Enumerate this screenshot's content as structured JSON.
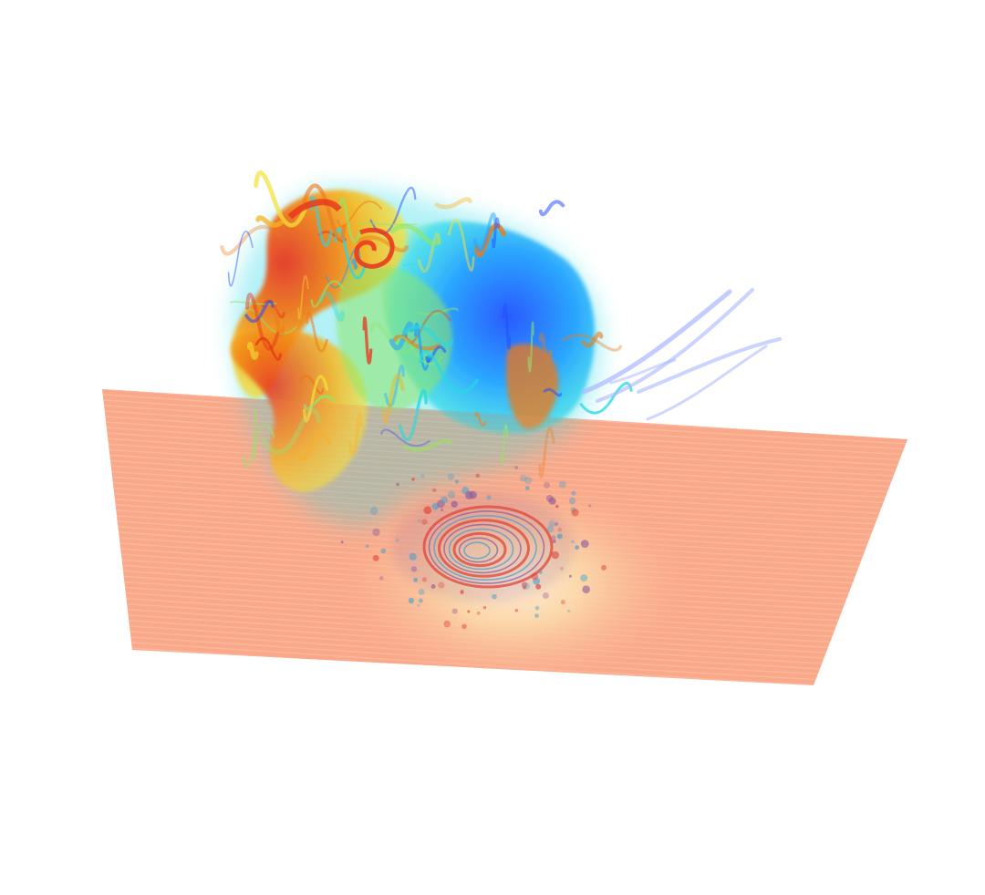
{
  "scene": {
    "background_color": "#ffffff",
    "slice_plane": {
      "base_color": "#f9a486",
      "stripe_color": "#fbc3a6",
      "center_glow_color": "#fffbe6",
      "mid_glow_color": "#fde3b2"
    },
    "volume_colormap": [
      "#1e4bff",
      "#1fa2ff",
      "#25d9e6",
      "#8fe66a",
      "#f3e23a",
      "#f7b21c",
      "#f07818",
      "#e8331c"
    ],
    "vortex_ring_colors": [
      "#d9302a",
      "#7a4fa0",
      "#2b9fd9"
    ],
    "streamline_color": "#a9b7ff"
  }
}
